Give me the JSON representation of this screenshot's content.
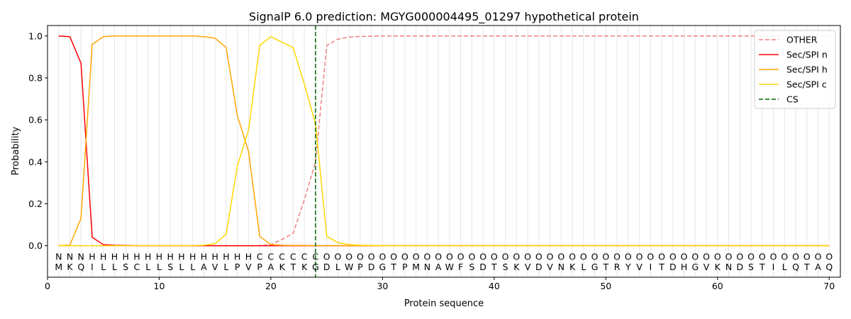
{
  "chart_data": {
    "type": "line",
    "title": "SignalP 6.0 prediction: MGYG000004495_01297 hypothetical protein",
    "xlabel": "Protein sequence",
    "ylabel": "Probability",
    "xlim": [
      0,
      71
    ],
    "ylim": [
      -0.15,
      1.05
    ],
    "xticks": [
      0,
      10,
      20,
      30,
      40,
      50,
      60,
      70
    ],
    "yticks": [
      0.0,
      0.2,
      0.4,
      0.6,
      0.8,
      1.0
    ],
    "grid": "vertical lines at each residue",
    "legend_position": "top-right",
    "sequence": [
      "M",
      "K",
      "Q",
      "I",
      "L",
      "L",
      "S",
      "C",
      "L",
      "L",
      "S",
      "L",
      "L",
      "A",
      "V",
      "L",
      "P",
      "V",
      "P",
      "A",
      "K",
      "T",
      "K",
      "G",
      "D",
      "L",
      "W",
      "P",
      "D",
      "G",
      "T",
      "P",
      "M",
      "N",
      "A",
      "W",
      "F",
      "S",
      "D",
      "T",
      "S",
      "K",
      "V",
      "D",
      "V",
      "N",
      "K",
      "L",
      "G",
      "T",
      "R",
      "Y",
      "V",
      "I",
      "T",
      "D",
      "H",
      "G",
      "V",
      "K",
      "N",
      "D",
      "S",
      "T",
      "I",
      "L",
      "Q",
      "T",
      "A",
      "Q"
    ],
    "labels": [
      "N",
      "N",
      "N",
      "H",
      "H",
      "H",
      "H",
      "H",
      "H",
      "H",
      "H",
      "H",
      "H",
      "H",
      "H",
      "H",
      "H",
      "H",
      "C",
      "C",
      "C",
      "C",
      "C",
      "C",
      "O",
      "O",
      "O",
      "O",
      "O",
      "O",
      "O",
      "O",
      "O",
      "O",
      "O",
      "O",
      "O",
      "O",
      "O",
      "O",
      "O",
      "O",
      "O",
      "O",
      "O",
      "O",
      "O",
      "O",
      "O",
      "O",
      "O",
      "O",
      "O",
      "O",
      "O",
      "O",
      "O",
      "O",
      "O",
      "O",
      "O",
      "O",
      "O",
      "O",
      "O",
      "O",
      "O",
      "O",
      "O",
      "O"
    ],
    "label_colors": {
      "N": "#ff0000",
      "H": "#ffa500",
      "C": "#ffd700",
      "O": "#808080"
    },
    "cs_position": 24,
    "series": [
      {
        "name": "OTHER",
        "color": "#f08080",
        "dash": "dashed",
        "values": [
          0,
          0,
          0,
          0,
          0,
          0,
          0,
          0,
          0,
          0,
          0,
          0,
          0,
          0,
          0,
          0,
          0,
          0,
          0,
          0.005,
          0.03,
          0.06,
          0.22,
          0.4,
          0.955,
          0.985,
          0.995,
          0.998,
          0.999,
          1,
          1,
          1,
          1,
          1,
          1,
          1,
          1,
          1,
          1,
          1,
          1,
          1,
          1,
          1,
          1,
          1,
          1,
          1,
          1,
          1,
          1,
          1,
          1,
          1,
          1,
          1,
          1,
          1,
          1,
          1,
          1,
          1,
          1,
          1,
          1,
          1,
          1,
          1,
          1,
          1
        ]
      },
      {
        "name": "Sec/SPI n",
        "color": "#ff0000",
        "dash": "solid",
        "values": [
          1.0,
          0.997,
          0.87,
          0.04,
          0.005,
          0.002,
          0.001,
          0,
          0,
          0,
          0,
          0,
          0,
          0,
          0,
          0,
          0,
          0,
          0,
          0,
          0,
          0,
          0,
          0,
          0,
          0,
          0,
          0,
          0,
          0,
          0,
          0,
          0,
          0,
          0,
          0,
          0,
          0,
          0,
          0,
          0,
          0,
          0,
          0,
          0,
          0,
          0,
          0,
          0,
          0,
          0,
          0,
          0,
          0,
          0,
          0,
          0,
          0,
          0,
          0,
          0,
          0,
          0,
          0,
          0,
          0,
          0,
          0,
          0,
          0
        ]
      },
      {
        "name": "Sec/SPI h",
        "color": "#ffa500",
        "dash": "solid",
        "values": [
          0,
          0.003,
          0.13,
          0.96,
          0.997,
          1.0,
          1.0,
          1.0,
          1.0,
          1.0,
          1.0,
          1.0,
          1.0,
          0.997,
          0.99,
          0.945,
          0.62,
          0.45,
          0.045,
          0.005,
          0.002,
          0.001,
          0.001,
          0,
          0,
          0,
          0,
          0,
          0,
          0,
          0,
          0,
          0,
          0,
          0,
          0,
          0,
          0,
          0,
          0,
          0,
          0,
          0,
          0,
          0,
          0,
          0,
          0,
          0,
          0,
          0,
          0,
          0,
          0,
          0,
          0,
          0,
          0,
          0,
          0,
          0,
          0,
          0,
          0,
          0,
          0,
          0,
          0,
          0,
          0
        ]
      },
      {
        "name": "Sec/SPI c",
        "color": "#ffd700",
        "dash": "solid",
        "values": [
          0,
          0,
          0,
          0,
          0,
          0,
          0,
          0,
          0,
          0,
          0,
          0,
          0,
          0.002,
          0.01,
          0.055,
          0.38,
          0.55,
          0.955,
          0.997,
          0.97,
          0.945,
          0.77,
          0.58,
          0.045,
          0.015,
          0.005,
          0.002,
          0.001,
          0,
          0,
          0,
          0,
          0,
          0,
          0,
          0,
          0,
          0,
          0,
          0,
          0,
          0,
          0,
          0,
          0,
          0,
          0,
          0,
          0,
          0,
          0,
          0,
          0,
          0,
          0,
          0,
          0,
          0,
          0,
          0,
          0,
          0,
          0,
          0,
          0,
          0,
          0,
          0,
          0
        ]
      }
    ],
    "legend": [
      "OTHER",
      "Sec/SPI n",
      "Sec/SPI h",
      "Sec/SPI c",
      "CS"
    ],
    "cs_color": "#006400"
  }
}
